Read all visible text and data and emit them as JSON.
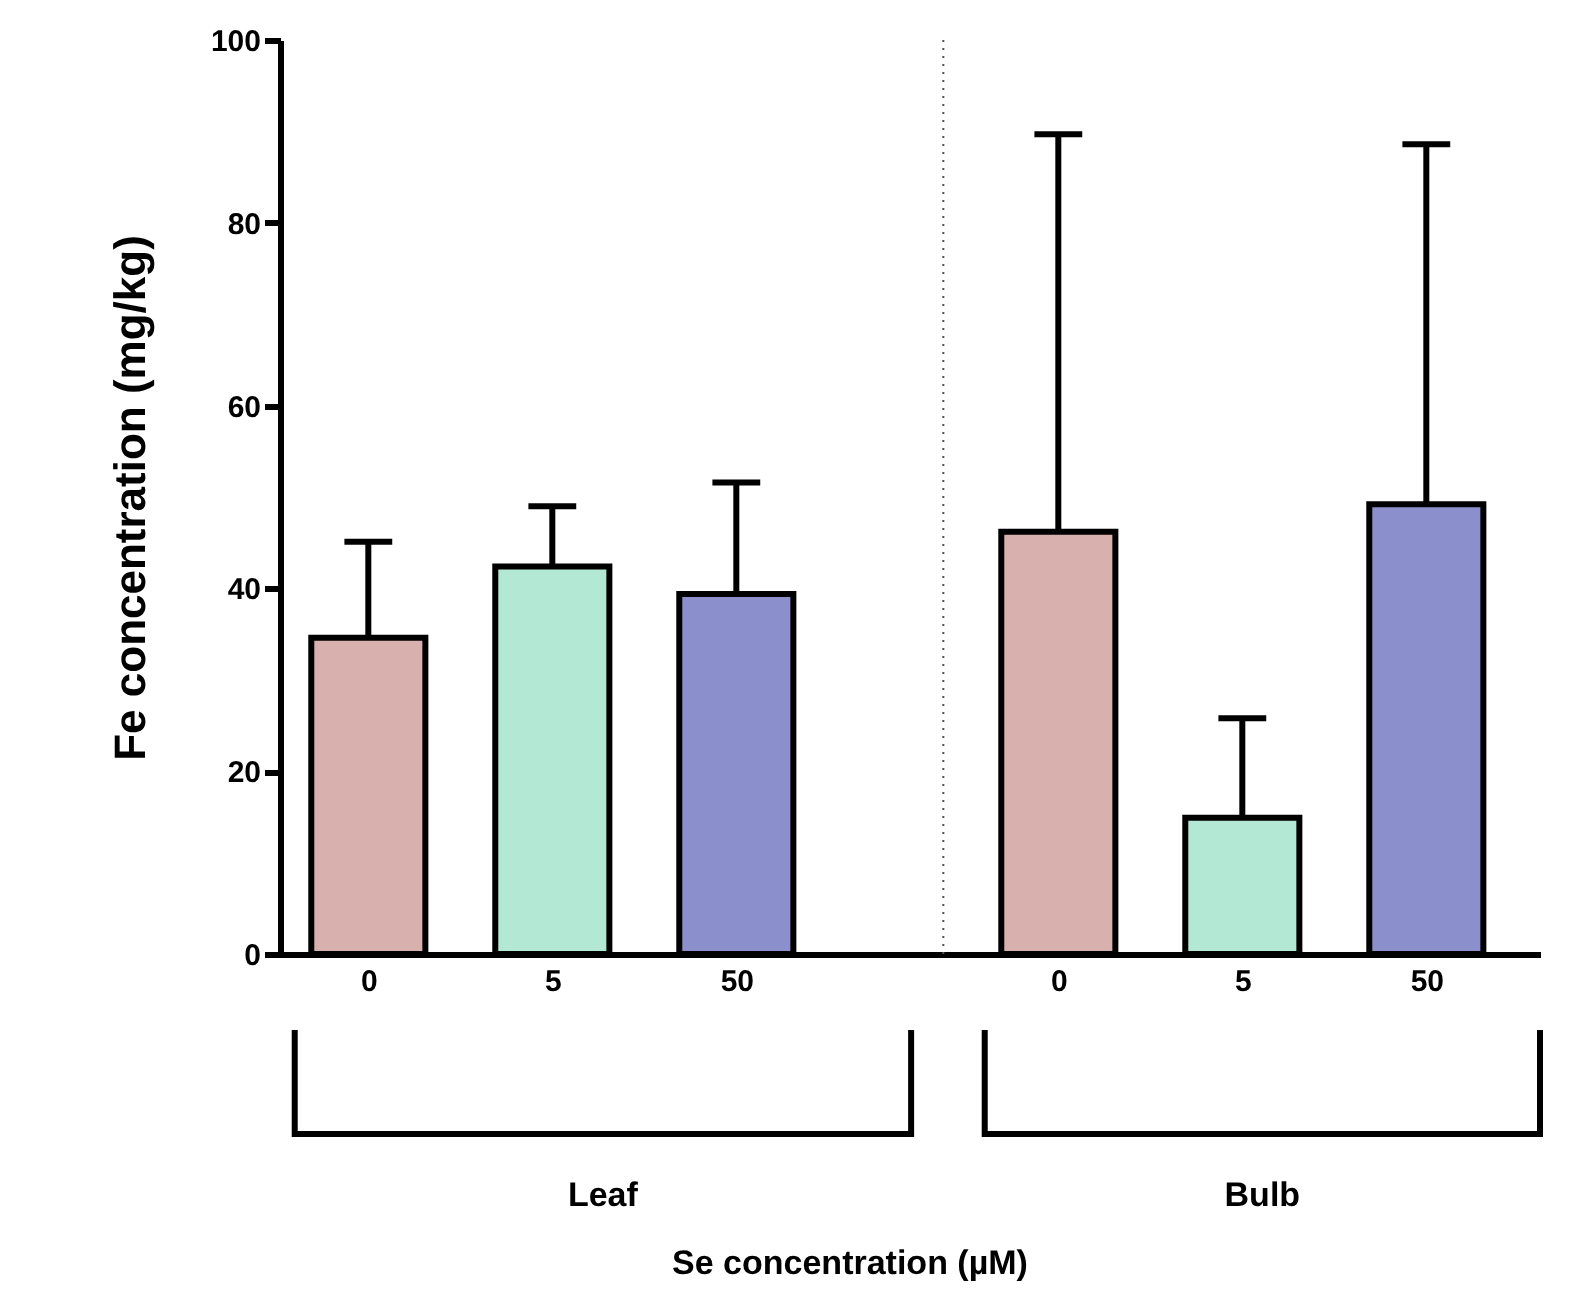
{
  "chart_data": {
    "type": "bar",
    "categories": [
      "0",
      "5",
      "50",
      "0",
      "5",
      "50"
    ],
    "values": [
      34.6,
      42.4,
      39.4,
      46.2,
      14.9,
      49.2
    ],
    "colors": [
      "#d8b0ae",
      "#b3e8d5",
      "#8b90cc",
      "#d8b0ae",
      "#b3e8d5",
      "#8b90cc"
    ],
    "errors": [
      [
        34.6,
        45.1
      ],
      [
        42.4,
        49.0
      ],
      [
        39.4,
        51.6
      ],
      [
        46.2,
        89.7
      ],
      [
        14.9,
        25.8
      ],
      [
        49.2,
        88.6
      ]
    ],
    "ylim": [
      0,
      100
    ],
    "yticks": [
      0,
      20,
      40,
      60,
      80,
      100
    ],
    "ylabel": "Fe concentration (mg/kg)",
    "annotations": [
      "Leaf",
      "Bulb",
      "Se concentration (µM)"
    ]
  }
}
